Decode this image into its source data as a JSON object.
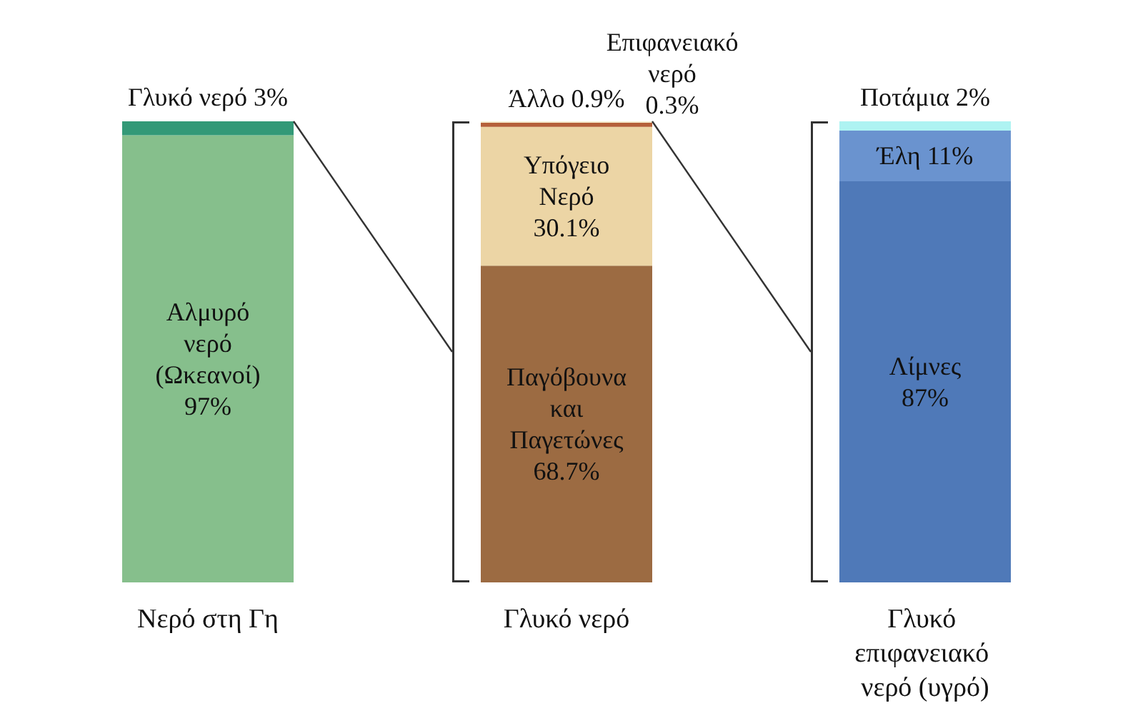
{
  "chart_data": {
    "type": "bar",
    "stacked": true,
    "categories": [
      "Νερό στη Γη",
      "Γλυκό νερό",
      "Γλυκό επιφανειακό νερό (υγρό)"
    ],
    "tick_labels": "x",
    "series": [
      {
        "name": "Αλμυρό νερό (Ωκεανοί)",
        "color": "#86bf8c",
        "values": [
          97,
          null,
          null
        ],
        "value_labels": [
          "97%",
          null,
          null
        ]
      },
      {
        "name": "Γλυκό νερό",
        "color": "#339977",
        "values": [
          3,
          null,
          null
        ],
        "value_labels": [
          "3%",
          null,
          null
        ]
      },
      {
        "name": "Παγόβουνα και Παγετώνες",
        "color": "#9c6b42",
        "values": [
          null,
          68.7,
          null
        ],
        "value_labels": [
          null,
          "68.7%",
          null
        ]
      },
      {
        "name": "Υπόγειο Νερό",
        "color": "#ecd5a5",
        "values": [
          null,
          30.1,
          null
        ],
        "value_labels": [
          null,
          "30.1%",
          null
        ]
      },
      {
        "name": "Άλλο",
        "color": "#b5603a",
        "values": [
          null,
          0.9,
          null
        ],
        "value_labels": [
          null,
          "0.9%",
          null
        ]
      },
      {
        "name": "Επιφανειακό νερό",
        "color": "#f5ecd0",
        "values": [
          null,
          0.3,
          null
        ],
        "value_labels": [
          null,
          "0.3%",
          null
        ]
      },
      {
        "name": "Λίμνες",
        "color": "#4f79b8",
        "values": [
          null,
          null,
          87
        ],
        "value_labels": [
          null,
          null,
          "87%"
        ]
      },
      {
        "name": "Έλη",
        "color": "#6a93cf",
        "values": [
          null,
          null,
          11
        ],
        "value_labels": [
          null,
          null,
          "11%"
        ]
      },
      {
        "name": "Ποτάμια",
        "color": "#aef3f2",
        "values": [
          null,
          null,
          2
        ],
        "value_labels": [
          null,
          null,
          "2%"
        ]
      }
    ]
  }
}
